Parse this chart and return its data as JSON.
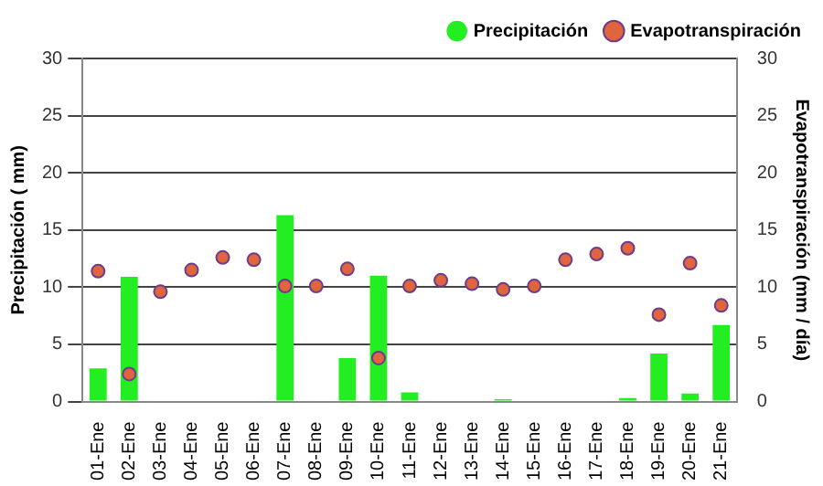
{
  "chart_data": {
    "type": "bar",
    "categories": [
      "01-Ene",
      "02-Ene",
      "03-Ene",
      "04-Ene",
      "05-Ene",
      "06-Ene",
      "07-Ene",
      "08-Ene",
      "09-Ene",
      "10-Ene",
      "11-Ene",
      "12-Ene",
      "13-Ene",
      "14-Ene",
      "15-Ene",
      "16-Ene",
      "17-Ene",
      "18-Ene",
      "19-Ene",
      "20-Ene",
      "21-Ene"
    ],
    "series": [
      {
        "name": "Precipitación",
        "color": "#22ee22",
        "values": [
          2.9,
          10.9,
          0,
          0,
          0,
          0,
          16.3,
          0,
          3.8,
          11.0,
          0.8,
          0,
          0,
          0.2,
          0,
          0,
          0,
          0.3,
          4.2,
          0.7,
          6.7
        ]
      },
      {
        "name": "Evapotranspiración",
        "type": "scatter",
        "axis": "y2",
        "color": "#e0643c",
        "values": [
          11.4,
          2.4,
          9.6,
          11.5,
          12.6,
          12.4,
          10.1,
          10.1,
          11.6,
          3.8,
          10.1,
          10.6,
          10.3,
          9.8,
          10.1,
          12.4,
          12.9,
          13.4,
          7.6,
          12.1,
          8.4
        ]
      }
    ],
    "ylabel": "Precipitación ( mm)",
    "y2label": "Evapotranspiración (mm / día)",
    "ylim": [
      0,
      30
    ],
    "yticks": [
      0,
      5,
      10,
      15,
      20,
      25,
      30
    ],
    "y2lim": [
      0,
      30
    ],
    "y2ticks": [
      0,
      5,
      10,
      15,
      20,
      25,
      30
    ],
    "grid": "y",
    "legend": "top right",
    "marker": "circle"
  }
}
